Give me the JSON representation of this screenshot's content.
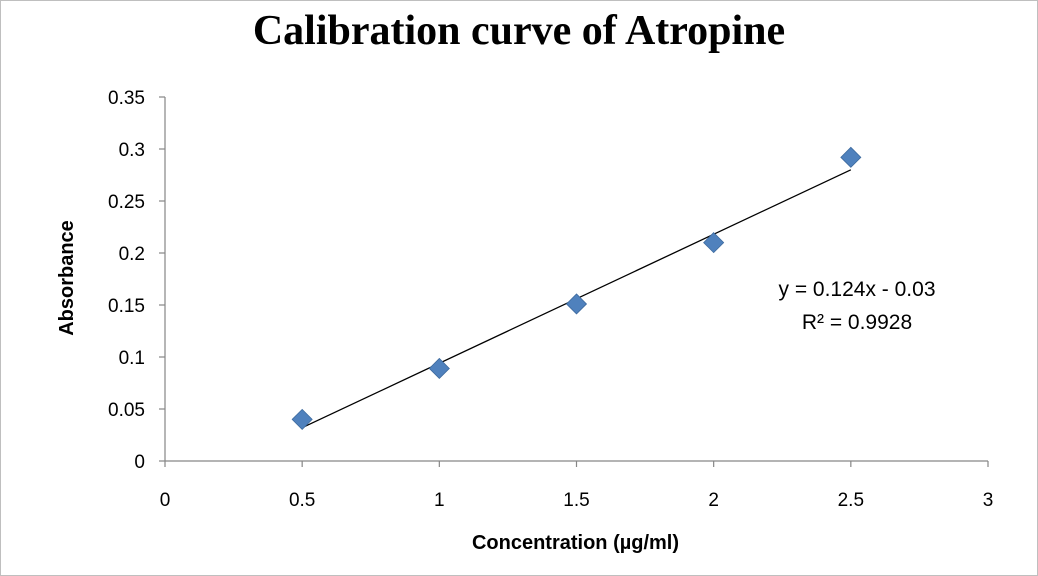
{
  "chart_data": {
    "type": "scatter",
    "title": "Calibration curve of Atropine",
    "xlabel": "Concentration (µg/ml)",
    "ylabel": "Absorbance",
    "xlim": [
      0,
      3
    ],
    "ylim": [
      0,
      0.35
    ],
    "xticks": [
      "0",
      "0.5",
      "1",
      "1.5",
      "2",
      "2.5",
      "3"
    ],
    "yticks": [
      "0",
      "0.05",
      "0.1",
      "0.15",
      "0.2",
      "0.25",
      "0.3",
      "0.35"
    ],
    "grid": false,
    "legend": "none",
    "marker_color": "#4f81bd",
    "series": [
      {
        "x": [
          0.5,
          1,
          1.5,
          2,
          2.5
        ],
        "y": [
          0.04,
          0.089,
          0.151,
          0.21,
          0.292
        ]
      }
    ],
    "trendline": {
      "slope": 0.124,
      "intercept": -0.03,
      "x_range": [
        0.5,
        2.5
      ],
      "equation": "y = 0.124x - 0.03",
      "r2_label": "R² = 0.9928"
    }
  }
}
